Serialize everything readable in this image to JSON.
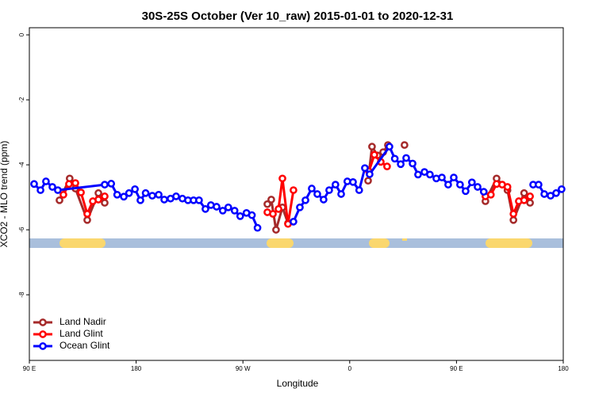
{
  "chart_data": {
    "type": "line",
    "title": "30S-25S October (Ver 10_raw)   2015-01-01 to 2020-12-31",
    "x_label": "Longitude",
    "y_label": "XCO2 - MLO trend (ppm)",
    "xlim": [
      90,
      540
    ],
    "xticks": [
      {
        "value": 90,
        "label": "90 E"
      },
      {
        "value": 180,
        "label": "180"
      },
      {
        "value": 270,
        "label": "90 W"
      },
      {
        "value": 360,
        "label": "0"
      },
      {
        "value": 450,
        "label": "90 E"
      },
      {
        "value": 540,
        "label": "180"
      }
    ],
    "ylim": [
      -10.02,
      0.22
    ],
    "yticks": [
      0,
      -2,
      -4,
      -6,
      -8
    ],
    "legend": "bottomleft",
    "series": [
      {
        "name": "Land Nadir",
        "color": "#a52a2a",
        "x": [
          115.4,
          124,
          128.8,
          138.8,
          148.2,
          153.5,
          null,
          290.6,
          293.9,
          297.9,
          303.3,
          308,
          null,
          375.5,
          378.8,
          383.5,
          388.2,
          392.2,
          null,
          406.2,
          null,
          474.4,
          483.8,
          493,
          498,
          507,
          512
        ],
        "values": [
          -5.09,
          -4.42,
          -4.73,
          -5.7,
          -4.87,
          -5.17,
          null,
          -5.21,
          -5.07,
          -6.0,
          -5.31,
          -5.8,
          null,
          -4.49,
          -3.44,
          -3.71,
          -3.61,
          -3.39,
          null,
          -3.39,
          null,
          -5.12,
          -4.42,
          -4.78,
          -5.7,
          -4.87,
          -5.17
        ]
      },
      {
        "name": "Land Glint",
        "color": "#ff0000",
        "x": [
          118.7,
          123.4,
          128.8,
          133.5,
          138.8,
          143.5,
          148.2,
          153.5,
          null,
          290.6,
          295.3,
          300,
          303.3,
          308,
          312.6,
          null,
          376.2,
          380.8,
          386.2,
          391.5,
          null,
          474.4,
          479,
          483.8,
          488.5,
          493,
          498,
          502.5,
          507,
          512
        ],
        "values": [
          -4.92,
          -4.59,
          -4.56,
          -4.85,
          -5.51,
          -5.12,
          -5.07,
          -4.97,
          null,
          -5.46,
          -5.51,
          -5.36,
          -4.42,
          -5.82,
          -4.78,
          null,
          -4.2,
          -3.69,
          -3.91,
          -4.05,
          null,
          -4.97,
          -4.92,
          -4.59,
          -4.61,
          -4.68,
          -5.51,
          -5.12,
          -5.09,
          -4.97
        ]
      },
      {
        "name": "Ocean Glint",
        "color": "#0000ff",
        "x": [
          94,
          99.4,
          104,
          109.4,
          114,
          153.5,
          159,
          164,
          169.6,
          174,
          179,
          183.6,
          188,
          193.6,
          199,
          203.7,
          209,
          213.7,
          219,
          223.7,
          228.4,
          233,
          238.4,
          243,
          247.8,
          253,
          257.7,
          263,
          267.7,
          273,
          277.6,
          282.3,
          null,
          312.6,
          318,
          322.7,
          328,
          332.7,
          338,
          342.7,
          348,
          352.8,
          358,
          362.8,
          368,
          372.8,
          376.8,
          393.5,
          398,
          403,
          407.6,
          413,
          417.6,
          423,
          427.6,
          433,
          437.7,
          443,
          447.7,
          453,
          457.7,
          463,
          467.8,
          473,
          null,
          514.6,
          519.2,
          524,
          529.3,
          534,
          538.6
        ],
        "values": [
          -4.59,
          -4.78,
          -4.51,
          -4.68,
          -4.78,
          -4.61,
          -4.58,
          -4.92,
          -4.98,
          -4.87,
          -4.75,
          -5.09,
          -4.87,
          -4.95,
          -4.92,
          -5.07,
          -5.04,
          -4.97,
          -5.04,
          -5.09,
          -5.09,
          -5.09,
          -5.36,
          -5.24,
          -5.29,
          -5.41,
          -5.31,
          -5.41,
          -5.58,
          -5.48,
          -5.55,
          -5.94,
          null,
          -5.75,
          -5.31,
          -5.09,
          -4.73,
          -4.9,
          -5.07,
          -4.78,
          -4.61,
          -4.9,
          -4.51,
          -4.53,
          -4.78,
          -4.1,
          -4.29,
          -3.44,
          -3.81,
          -3.98,
          -3.79,
          -3.96,
          -4.3,
          -4.22,
          -4.3,
          -4.42,
          -4.39,
          -4.61,
          -4.39,
          -4.61,
          -4.81,
          -4.54,
          -4.68,
          -4.83,
          null,
          -4.61,
          -4.61,
          -4.9,
          -4.95,
          -4.87,
          -4.75
        ]
      }
    ]
  }
}
